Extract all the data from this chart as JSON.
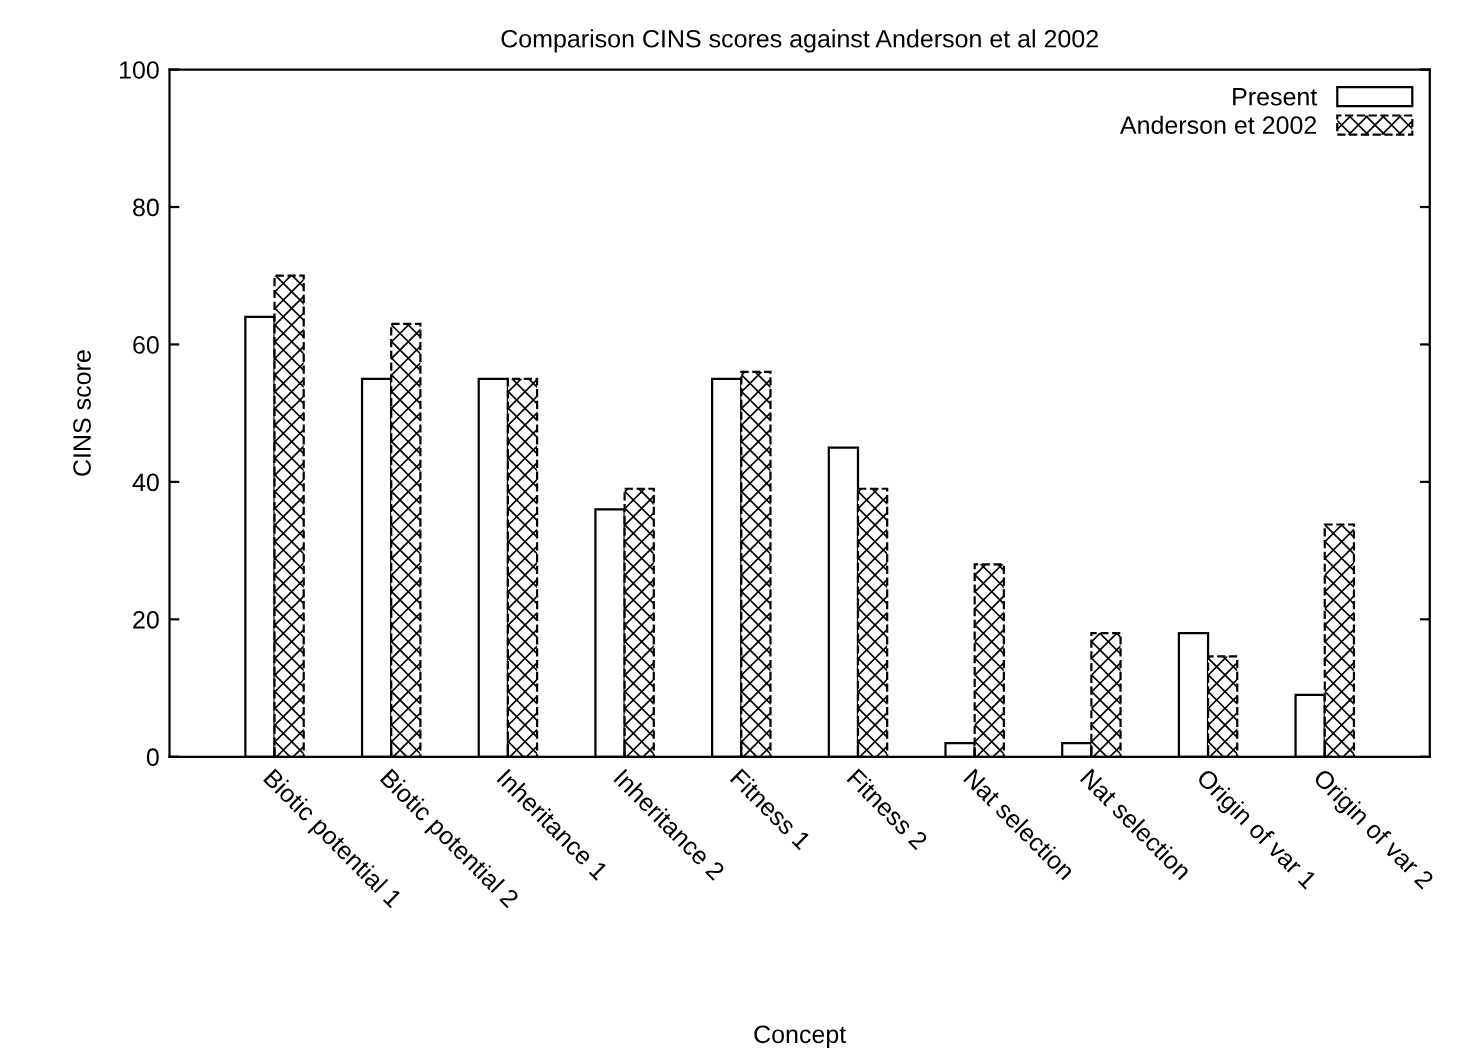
{
  "chart_data": {
    "type": "bar",
    "title": "Comparison CINS scores against Anderson et al 2002",
    "xlabel": "Concept",
    "ylabel": "CINS score",
    "categories": [
      "Biotic potential 1",
      "Biotic potential 2",
      "Inheritance 1",
      "Inheritance 2",
      "Fitness 1",
      "Fitness 2",
      "Nat selection",
      "Nat selection",
      "Origin of var 1",
      "Origin of var 2"
    ],
    "series": [
      {
        "name": "Present",
        "color": "#ffffff",
        "values": [
          64,
          55,
          55,
          36,
          55,
          45,
          2,
          2,
          18,
          9
        ]
      },
      {
        "name": "Anderson et 2002",
        "color": "#000000",
        "values": [
          70,
          63,
          55,
          39,
          56,
          39,
          28,
          18,
          14.6,
          33.8
        ]
      }
    ],
    "ylim": [
      0,
      100
    ],
    "yticks": [
      0,
      20,
      40,
      60,
      80,
      100
    ],
    "grid": false,
    "legend": "top right"
  }
}
